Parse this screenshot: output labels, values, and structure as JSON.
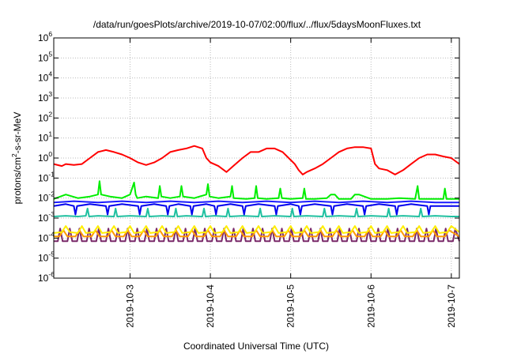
{
  "chart_data": {
    "type": "line",
    "title": "/data/run/goesPlots/archive/2019-10-07/02:00/flux/../flux/5daysMoonFluxes.txt",
    "xlabel": "Coordinated Universal Time (UTC)",
    "ylabel_parts": [
      "protons/cm",
      "2",
      "-s-sr-MeV"
    ],
    "yscale": "log",
    "ylim_exp": [
      -6,
      6
    ],
    "ytick_labels": [
      {
        "base": "10",
        "exp": "-6"
      },
      {
        "base": "10",
        "exp": "-5"
      },
      {
        "base": "10",
        "exp": "-4"
      },
      {
        "base": "10",
        "exp": "-3"
      },
      {
        "base": "10",
        "exp": "-2"
      },
      {
        "base": "10",
        "exp": "-1"
      },
      {
        "base": "10",
        "exp": "0"
      },
      {
        "base": "10",
        "exp": "1"
      },
      {
        "base": "10",
        "exp": "2"
      },
      {
        "base": "10",
        "exp": "3"
      },
      {
        "base": "10",
        "exp": "4"
      },
      {
        "base": "10",
        "exp": "5"
      },
      {
        "base": "10",
        "exp": "6"
      }
    ],
    "xlim_days": [
      2.05,
      7.1
    ],
    "xticks": [
      {
        "label": "2019-10-3",
        "day": 3
      },
      {
        "label": "2019-10-4",
        "day": 4
      },
      {
        "label": "2019-10-5",
        "day": 5
      },
      {
        "label": "2019-10-6",
        "day": 6
      },
      {
        "label": "2019-10-7",
        "day": 7
      }
    ],
    "grid": true,
    "series": [
      {
        "color": "#ff0000",
        "x_days": [
          2.05,
          2.15,
          2.2,
          2.3,
          2.4,
          2.5,
          2.6,
          2.7,
          2.8,
          2.9,
          3.0,
          3.1,
          3.2,
          3.3,
          3.4,
          3.5,
          3.6,
          3.7,
          3.8,
          3.9,
          3.95,
          4.0,
          4.1,
          4.2,
          4.3,
          4.4,
          4.5,
          4.6,
          4.7,
          4.8,
          4.9,
          5.0,
          5.05,
          5.1,
          5.15,
          5.2,
          5.3,
          5.4,
          5.5,
          5.6,
          5.7,
          5.8,
          5.9,
          6.0,
          6.05,
          6.1,
          6.2,
          6.3,
          6.4,
          6.5,
          6.6,
          6.7,
          6.8,
          6.9,
          7.0,
          7.1
        ],
        "y": [
          0.5,
          0.4,
          0.5,
          0.45,
          0.5,
          1.0,
          2.0,
          2.5,
          2.0,
          1.5,
          1.0,
          0.6,
          0.45,
          0.6,
          1.0,
          2.0,
          2.5,
          3.0,
          4.0,
          3.0,
          1.0,
          0.6,
          0.4,
          0.2,
          0.45,
          1.0,
          2.0,
          2.0,
          3.0,
          3.0,
          2.0,
          0.8,
          0.5,
          0.25,
          0.15,
          0.2,
          0.3,
          0.5,
          1.0,
          2.0,
          3.0,
          3.5,
          3.5,
          3.0,
          0.5,
          0.3,
          0.25,
          0.15,
          0.25,
          0.5,
          1.0,
          1.5,
          1.5,
          1.2,
          1.0,
          0.5
        ]
      },
      {
        "color": "#00ee00",
        "x_days": [
          2.05,
          2.2,
          2.35,
          2.5,
          2.6,
          2.62,
          2.64,
          2.75,
          2.9,
          3.0,
          3.05,
          3.07,
          3.09,
          3.2,
          3.35,
          3.37,
          3.39,
          3.5,
          3.62,
          3.64,
          3.66,
          3.8,
          3.95,
          3.97,
          3.99,
          4.1,
          4.25,
          4.27,
          4.29,
          4.45,
          4.55,
          4.57,
          4.59,
          4.7,
          4.85,
          4.87,
          4.89,
          5.0,
          5.15,
          5.17,
          5.19,
          5.3,
          5.45,
          5.5,
          5.55,
          5.6,
          5.75,
          5.8,
          5.85,
          6.0,
          6.2,
          6.35,
          6.55,
          6.58,
          6.6,
          6.7,
          6.9,
          6.92,
          6.94,
          7.1
        ],
        "y": [
          0.009,
          0.015,
          0.01,
          0.012,
          0.015,
          0.07,
          0.015,
          0.012,
          0.01,
          0.015,
          0.06,
          0.015,
          0.01,
          0.012,
          0.01,
          0.04,
          0.012,
          0.01,
          0.012,
          0.04,
          0.012,
          0.01,
          0.015,
          0.05,
          0.012,
          0.01,
          0.012,
          0.04,
          0.01,
          0.009,
          0.01,
          0.04,
          0.01,
          0.009,
          0.01,
          0.03,
          0.01,
          0.009,
          0.01,
          0.03,
          0.009,
          0.009,
          0.01,
          0.015,
          0.015,
          0.009,
          0.009,
          0.015,
          0.015,
          0.009,
          0.009,
          0.01,
          0.009,
          0.04,
          0.009,
          0.009,
          0.009,
          0.03,
          0.009,
          0.009
        ]
      },
      {
        "color": "#0000ee",
        "x_days": [
          2.05,
          2.2,
          2.3,
          2.32,
          2.34,
          2.5,
          2.7,
          2.72,
          2.74,
          2.9,
          3.1,
          3.12,
          3.14,
          3.3,
          3.45,
          3.47,
          3.49,
          3.6,
          3.75,
          3.77,
          3.79,
          3.95,
          4.05,
          4.07,
          4.09,
          4.25,
          4.4,
          4.42,
          4.44,
          4.6,
          4.8,
          4.82,
          4.84,
          5.0,
          5.1,
          5.12,
          5.14,
          5.3,
          5.5,
          5.52,
          5.54,
          5.7,
          5.9,
          5.92,
          5.94,
          6.1,
          6.3,
          6.32,
          6.34,
          6.5,
          6.7,
          6.72,
          6.74,
          6.9,
          7.1
        ],
        "y": [
          0.004,
          0.005,
          0.004,
          0.0015,
          0.004,
          0.005,
          0.004,
          0.0015,
          0.004,
          0.005,
          0.004,
          0.0015,
          0.004,
          0.005,
          0.004,
          0.0015,
          0.004,
          0.005,
          0.004,
          0.0015,
          0.004,
          0.005,
          0.004,
          0.0015,
          0.004,
          0.005,
          0.004,
          0.0015,
          0.004,
          0.005,
          0.004,
          0.0015,
          0.004,
          0.005,
          0.004,
          0.0015,
          0.004,
          0.005,
          0.004,
          0.0015,
          0.004,
          0.005,
          0.004,
          0.0015,
          0.004,
          0.005,
          0.004,
          0.0015,
          0.004,
          0.005,
          0.004,
          0.0015,
          0.004,
          0.004,
          0.004
        ]
      },
      {
        "color": "#1a1aff",
        "x_days": [
          2.05,
          2.3,
          2.6,
          2.9,
          3.2,
          3.5,
          3.8,
          4.1,
          4.4,
          4.7,
          5.0,
          5.3,
          5.6,
          5.9,
          6.2,
          6.5,
          6.8,
          7.1
        ],
        "y": [
          0.006,
          0.007,
          0.006,
          0.007,
          0.006,
          0.007,
          0.006,
          0.007,
          0.006,
          0.007,
          0.006,
          0.007,
          0.006,
          0.007,
          0.006,
          0.007,
          0.006,
          0.006
        ]
      },
      {
        "color": "#20c0a0",
        "x_days": [
          2.05,
          2.2,
          2.35,
          2.45,
          2.47,
          2.49,
          2.6,
          2.8,
          2.82,
          2.84,
          3.0,
          3.2,
          3.22,
          3.24,
          3.4,
          3.55,
          3.57,
          3.59,
          3.7,
          3.9,
          3.92,
          3.94,
          4.05,
          4.2,
          4.22,
          4.24,
          4.4,
          4.6,
          4.62,
          4.64,
          4.8,
          5.0,
          5.02,
          5.04,
          5.2,
          5.4,
          5.42,
          5.44,
          5.6,
          5.8,
          5.82,
          5.84,
          6.0,
          6.2,
          6.22,
          6.24,
          6.4,
          6.6,
          6.62,
          6.64,
          6.8,
          7.0,
          7.1
        ],
        "y": [
          0.0012,
          0.0013,
          0.0012,
          0.0013,
          0.003,
          0.0012,
          0.0013,
          0.0012,
          0.003,
          0.0012,
          0.0013,
          0.0012,
          0.003,
          0.0012,
          0.0013,
          0.0012,
          0.003,
          0.0012,
          0.0013,
          0.0012,
          0.003,
          0.0012,
          0.0013,
          0.0012,
          0.003,
          0.0012,
          0.0013,
          0.0012,
          0.003,
          0.0012,
          0.0013,
          0.0012,
          0.003,
          0.0012,
          0.0013,
          0.0012,
          0.003,
          0.0012,
          0.0013,
          0.0012,
          0.003,
          0.0012,
          0.0013,
          0.0012,
          0.003,
          0.0012,
          0.0013,
          0.0012,
          0.003,
          0.0012,
          0.0013,
          0.0012,
          0.0012
        ]
      },
      {
        "color": "#ffee00",
        "x_days": [
          2.05,
          2.15,
          2.2,
          2.25,
          2.35,
          2.4,
          2.45,
          2.55,
          2.6,
          2.65,
          2.75,
          2.8,
          2.85,
          2.95,
          3.0,
          3.05,
          3.15,
          3.2,
          3.25,
          3.35,
          3.4,
          3.45,
          3.55,
          3.6,
          3.65,
          3.75,
          3.8,
          3.85,
          3.95,
          4.0,
          4.05,
          4.15,
          4.2,
          4.25,
          4.35,
          4.4,
          4.45,
          4.55,
          4.6,
          4.65,
          4.75,
          4.8,
          4.85,
          4.95,
          5.0,
          5.05,
          5.15,
          5.2,
          5.25,
          5.35,
          5.4,
          5.45,
          5.55,
          5.6,
          5.65,
          5.75,
          5.8,
          5.85,
          5.95,
          6.0,
          6.05,
          6.15,
          6.2,
          6.25,
          6.35,
          6.4,
          6.45,
          6.55,
          6.6,
          6.65,
          6.75,
          6.8,
          6.85,
          6.95,
          7.0,
          7.1
        ],
        "y": [
          0.00018,
          0.0002,
          0.0004,
          0.0002,
          0.00018,
          0.0004,
          0.00018,
          0.0002,
          0.0004,
          0.00018,
          0.0002,
          0.0004,
          0.00018,
          0.0002,
          0.0004,
          0.00018,
          0.0002,
          0.0004,
          0.00018,
          0.0002,
          0.0004,
          0.00018,
          0.0002,
          0.0004,
          0.00018,
          0.0002,
          0.0004,
          0.00018,
          0.0002,
          0.0004,
          0.00018,
          0.0002,
          0.0004,
          0.00018,
          0.0002,
          0.0004,
          0.00018,
          0.0002,
          0.0004,
          0.00018,
          0.0002,
          0.0004,
          0.00018,
          0.0002,
          0.0004,
          0.00018,
          0.0002,
          0.0004,
          0.00018,
          0.0002,
          0.0004,
          0.00018,
          0.0002,
          0.0004,
          0.00018,
          0.0002,
          0.0004,
          0.00018,
          0.0002,
          0.0004,
          0.00018,
          0.0002,
          0.0004,
          0.00018,
          0.0002,
          0.0004,
          0.00018,
          0.0002,
          0.0004,
          0.00018,
          0.0002,
          0.0004,
          0.00018,
          0.0002,
          0.0004,
          0.0002
        ]
      },
      {
        "color": "#ff9a00",
        "x_days": [
          2.05,
          2.12,
          2.17,
          2.22,
          2.32,
          2.37,
          2.42,
          2.52,
          2.57,
          2.62,
          2.72,
          2.77,
          2.82,
          2.92,
          2.97,
          3.02,
          3.12,
          3.17,
          3.22,
          3.32,
          3.37,
          3.42,
          3.52,
          3.57,
          3.62,
          3.72,
          3.77,
          3.82,
          3.92,
          3.97,
          4.02,
          4.12,
          4.17,
          4.22,
          4.32,
          4.37,
          4.42,
          4.52,
          4.57,
          4.62,
          4.72,
          4.77,
          4.82,
          4.92,
          4.97,
          5.02,
          5.12,
          5.17,
          5.22,
          5.32,
          5.37,
          5.42,
          5.52,
          5.57,
          5.62,
          5.72,
          5.77,
          5.82,
          5.92,
          5.97,
          6.02,
          6.12,
          6.17,
          6.22,
          6.32,
          6.37,
          6.42,
          6.52,
          6.57,
          6.62,
          6.72,
          6.77,
          6.82,
          6.92,
          6.97,
          7.1
        ],
        "y": [
          0.00012,
          0.00012,
          0.00025,
          0.00012,
          0.00012,
          0.00025,
          0.00012,
          0.00012,
          0.00025,
          0.00012,
          0.00012,
          0.00025,
          0.00012,
          0.00012,
          0.00025,
          0.00012,
          0.00012,
          0.00025,
          0.00012,
          0.00012,
          0.00025,
          0.00012,
          0.00012,
          0.00025,
          0.00012,
          0.00012,
          0.00025,
          0.00012,
          0.00012,
          0.00025,
          0.00012,
          0.00012,
          0.00025,
          0.00012,
          0.00012,
          0.00025,
          0.00012,
          0.00012,
          0.00025,
          0.00012,
          0.00012,
          0.00025,
          0.00012,
          0.00012,
          0.00025,
          0.00012,
          0.00012,
          0.00025,
          0.00012,
          0.00012,
          0.00025,
          0.00012,
          0.00012,
          0.00025,
          0.00012,
          0.00012,
          0.00025,
          0.00012,
          0.00012,
          0.00025,
          0.00012,
          0.00012,
          0.00025,
          0.00012,
          0.00012,
          0.00025,
          0.00012,
          0.00012,
          0.00025,
          0.00012,
          0.00012,
          0.00025,
          0.00012,
          0.00012,
          0.00025,
          0.00012
        ]
      },
      {
        "color": "#7a2a6a",
        "x_days": [
          2.05,
          2.1,
          2.13,
          2.16,
          2.22,
          2.25,
          2.28,
          2.34,
          2.37,
          2.4,
          2.46,
          2.49,
          2.52,
          2.58,
          2.61,
          2.64,
          2.7,
          2.73,
          2.76,
          2.82,
          2.85,
          2.88,
          2.94,
          2.97,
          3.0,
          3.06,
          3.09,
          3.12,
          3.18,
          3.21,
          3.24,
          3.3,
          3.33,
          3.36,
          3.42,
          3.45,
          3.48,
          3.54,
          3.57,
          3.6,
          3.66,
          3.69,
          3.72,
          3.78,
          3.81,
          3.84,
          3.9,
          3.93,
          3.96,
          4.02,
          4.05,
          4.08,
          4.14,
          4.17,
          4.2,
          4.26,
          4.29,
          4.32,
          4.38,
          4.41,
          4.44,
          4.5,
          4.53,
          4.56,
          4.62,
          4.65,
          4.68,
          4.74,
          4.77,
          4.8,
          4.86,
          4.89,
          4.92,
          4.98,
          5.01,
          5.04,
          5.1,
          5.13,
          5.16,
          5.22,
          5.25,
          5.28,
          5.34,
          5.37,
          5.4,
          5.46,
          5.49,
          5.52,
          5.58,
          5.61,
          5.64,
          5.7,
          5.73,
          5.76,
          5.82,
          5.85,
          5.88,
          5.94,
          5.97,
          6.0,
          6.06,
          6.09,
          6.12,
          6.18,
          6.21,
          6.24,
          6.3,
          6.33,
          6.36,
          6.42,
          6.45,
          6.48,
          6.54,
          6.57,
          6.6,
          6.66,
          6.69,
          6.72,
          6.78,
          6.81,
          6.84,
          6.9,
          6.93,
          6.96,
          7.02,
          7.05,
          7.1
        ],
        "y": [
          7e-05,
          7e-05,
          0.0003,
          7e-05,
          7e-05,
          0.0003,
          7e-05,
          7e-05,
          0.0003,
          7e-05,
          7e-05,
          0.0003,
          7e-05,
          7e-05,
          0.0003,
          7e-05,
          7e-05,
          0.0003,
          7e-05,
          7e-05,
          0.0003,
          7e-05,
          7e-05,
          0.0003,
          7e-05,
          7e-05,
          0.0003,
          7e-05,
          7e-05,
          0.0003,
          7e-05,
          7e-05,
          0.0003,
          7e-05,
          7e-05,
          0.0003,
          7e-05,
          7e-05,
          0.0003,
          7e-05,
          7e-05,
          0.0003,
          7e-05,
          7e-05,
          0.0003,
          7e-05,
          7e-05,
          0.0003,
          7e-05,
          7e-05,
          0.0003,
          7e-05,
          7e-05,
          0.0003,
          7e-05,
          7e-05,
          0.0003,
          7e-05,
          7e-05,
          0.0003,
          7e-05,
          7e-05,
          0.0003,
          7e-05,
          7e-05,
          0.0003,
          7e-05,
          7e-05,
          0.0003,
          7e-05,
          7e-05,
          0.0003,
          7e-05,
          7e-05,
          0.0003,
          7e-05,
          7e-05,
          0.0003,
          7e-05,
          7e-05,
          0.0003,
          7e-05,
          7e-05,
          0.0003,
          7e-05,
          7e-05,
          0.0003,
          7e-05,
          7e-05,
          0.0003,
          7e-05,
          7e-05,
          0.0003,
          7e-05,
          7e-05,
          0.0003,
          7e-05,
          7e-05,
          0.0003,
          7e-05,
          7e-05,
          0.0003,
          7e-05,
          7e-05,
          0.0003,
          7e-05,
          7e-05,
          0.0003,
          7e-05,
          7e-05,
          0.0003,
          7e-05,
          7e-05,
          0.0003,
          7e-05,
          7e-05,
          0.0003,
          7e-05,
          7e-05,
          0.0003,
          7e-05,
          7e-05,
          0.0003,
          7e-05,
          7e-05,
          0.0003,
          7e-05
        ]
      }
    ]
  }
}
